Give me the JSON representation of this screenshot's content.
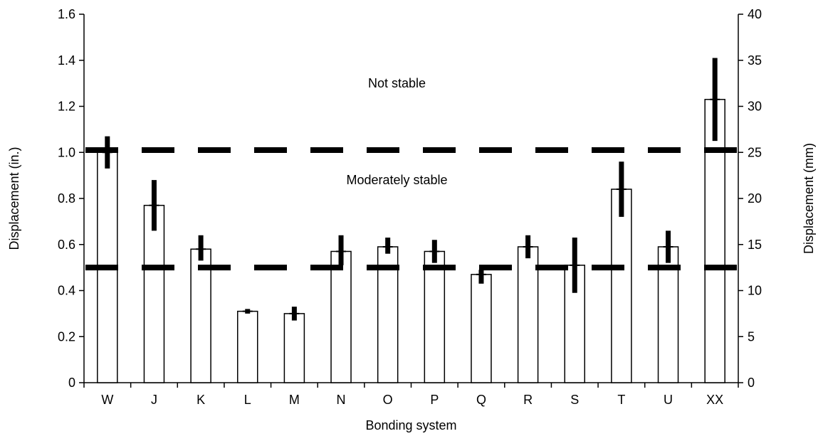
{
  "chart_data": {
    "type": "bar",
    "xlabel": "Bonding system",
    "ylabel": "Displacement (in.)",
    "y2label": "Displacement (mm)",
    "categories": [
      "W",
      "J",
      "K",
      "L",
      "M",
      "N",
      "O",
      "P",
      "Q",
      "R",
      "S",
      "T",
      "U",
      "XX"
    ],
    "series": [
      {
        "values": [
          1.0,
          0.77,
          0.58,
          0.31,
          0.3,
          0.57,
          0.59,
          0.57,
          0.47,
          0.59,
          0.51,
          0.84,
          0.59,
          1.23
        ],
        "error_low": [
          0.93,
          0.66,
          0.53,
          0.3,
          0.27,
          0.51,
          0.56,
          0.52,
          0.43,
          0.54,
          0.39,
          0.72,
          0.52,
          1.05
        ],
        "error_high": [
          1.07,
          0.88,
          0.64,
          0.32,
          0.33,
          0.64,
          0.63,
          0.62,
          0.49,
          0.64,
          0.63,
          0.96,
          0.66,
          1.41
        ]
      }
    ],
    "ylim": [
      0,
      1.6
    ],
    "yticks": [
      "0",
      "0.2",
      "0.4",
      "0.6",
      "0.8",
      "1.0",
      "1.2",
      "1.4",
      "1.6"
    ],
    "ytick_values": [
      0,
      0.2,
      0.4,
      0.6,
      0.8,
      1.0,
      1.2,
      1.4,
      1.6
    ],
    "y2lim": [
      0,
      40
    ],
    "y2ticks": [
      "0",
      "5",
      "10",
      "15",
      "20",
      "25",
      "30",
      "35",
      "40"
    ],
    "y2tick_values": [
      0,
      5,
      10,
      15,
      20,
      25,
      30,
      35,
      40
    ],
    "threshold_lines": [
      1.01,
      0.5
    ],
    "annotations": [
      {
        "text": "Not stable",
        "y": 1.3
      },
      {
        "text": "Moderately stable",
        "y": 0.88
      }
    ],
    "grid": false,
    "legend": "none",
    "colors": {
      "bar_fill": "#ffffff",
      "bar_stroke": "#000000",
      "error_bar": "#000000",
      "threshold": "#000000"
    }
  }
}
